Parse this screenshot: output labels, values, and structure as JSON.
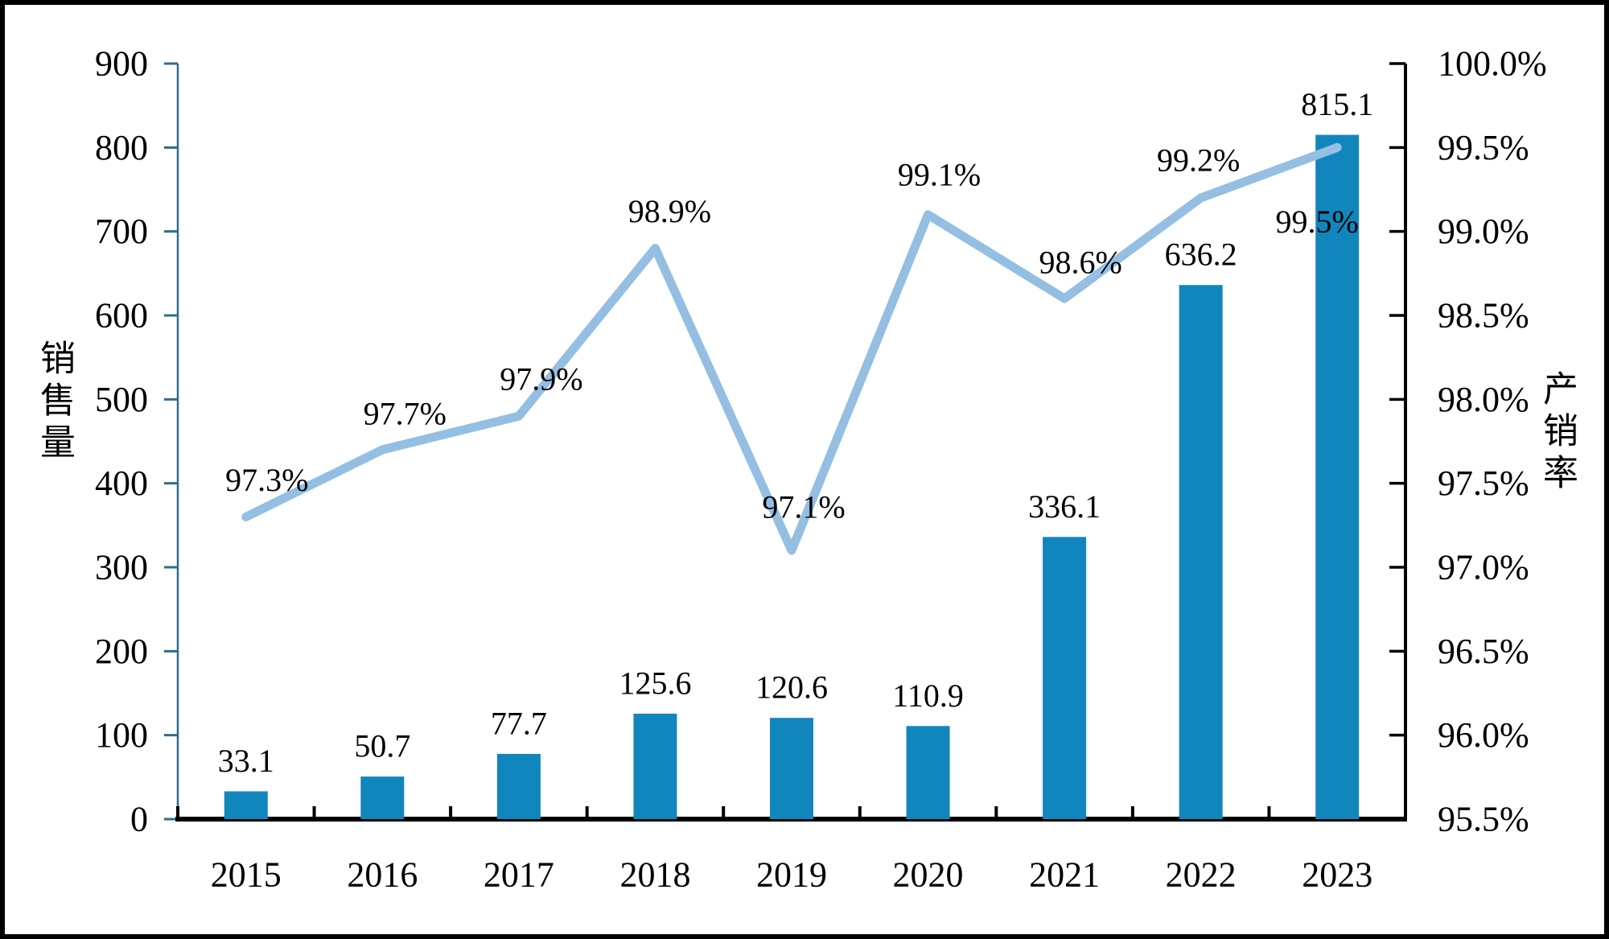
{
  "chart_data": {
    "type": "bar+line",
    "title": "",
    "categories": [
      "2015",
      "2016",
      "2017",
      "2018",
      "2019",
      "2020",
      "2021",
      "2022",
      "2023"
    ],
    "series": [
      {
        "name": "销售量",
        "type": "bar",
        "axis": "left",
        "color": "#1186BD",
        "values": [
          33.1,
          50.7,
          77.7,
          125.6,
          120.6,
          110.9,
          336.1,
          636.2,
          815.1
        ],
        "labels": [
          "33.1",
          "50.7",
          "77.7",
          "125.6",
          "120.6",
          "110.9",
          "336.1",
          "636.2",
          "815.1"
        ]
      },
      {
        "name": "产销率",
        "type": "line",
        "axis": "right",
        "color": "#94BFE3",
        "values": [
          97.3,
          97.7,
          97.9,
          98.9,
          97.1,
          99.1,
          98.6,
          99.2,
          99.5
        ],
        "labels": [
          "97.3%",
          "97.7%",
          "97.9%",
          "98.9%",
          "97.1%",
          "99.1%",
          "98.6%",
          "99.2%",
          "99.5%"
        ]
      }
    ],
    "left_axis": {
      "title": "销售量",
      "min": 0,
      "max": 900,
      "step": 100,
      "tick_labels": [
        "900",
        "800",
        "700",
        "600",
        "500",
        "400",
        "300",
        "200",
        "100",
        "0"
      ],
      "color": "#2F6C8E"
    },
    "right_axis": {
      "title": "产销率",
      "min": 95.5,
      "max": 100.0,
      "step": 0.5,
      "tick_labels": [
        "100.0%",
        "99.5%",
        "99.0%",
        "98.5%",
        "98.0%",
        "97.5%",
        "97.0%",
        "96.5%",
        "96.0%",
        "95.5%"
      ],
      "color": "#000000"
    },
    "x_axis": {
      "color": "#000000"
    },
    "grid": false,
    "legend": false,
    "background": "#FFFFFF",
    "frame_color": "#000000"
  }
}
